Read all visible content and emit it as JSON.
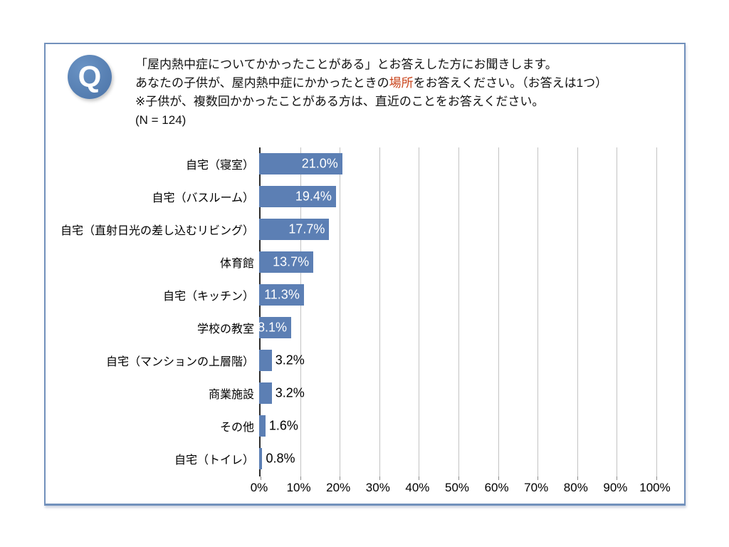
{
  "question": {
    "badge": "Q",
    "line1": "「屋内熱中症についてかかったことがある」とお答えした方にお聞きします。",
    "line2_before": "あなたの子供が、屋内熱中症にかかったときの",
    "line2_highlight": "場所",
    "line2_after": "をお答えください。（お答えは1つ）",
    "line3": "※子供が、複数回かかったことがある方は、直近のことをお答えください。",
    "line4": "(N = 124)"
  },
  "chart_data": {
    "type": "bar",
    "orientation": "horizontal",
    "title": "",
    "xlabel": "",
    "ylabel": "",
    "xlim": [
      0,
      100
    ],
    "grid": true,
    "legend_position": "none",
    "categories": [
      "自宅（寝室）",
      "自宅（バスルーム）",
      "自宅（直射日光の差し込むリビング）",
      "体育館",
      "自宅（キッチン）",
      "学校の教室",
      "自宅（マンションの上層階）",
      "商業施設",
      "その他",
      "自宅（トイレ）"
    ],
    "values": [
      21.0,
      19.4,
      17.7,
      13.7,
      11.3,
      8.1,
      3.2,
      3.2,
      1.6,
      0.8
    ],
    "value_labels": [
      "21.0%",
      "19.4%",
      "17.7%",
      "13.7%",
      "11.3%",
      "8.1%",
      "3.2%",
      "3.2%",
      "1.6%",
      "0.8%"
    ],
    "x_ticks": [
      "0%",
      "10%",
      "20%",
      "30%",
      "40%",
      "50%",
      "60%",
      "70%",
      "80%",
      "90%",
      "100%"
    ]
  },
  "colors": {
    "bar": "#5C7FB4",
    "badge": "#4B73A7",
    "badge_light": "#6A93C4",
    "highlight": "#C9431A",
    "border": "#7291BC",
    "gridline": "#C3C3C3"
  }
}
